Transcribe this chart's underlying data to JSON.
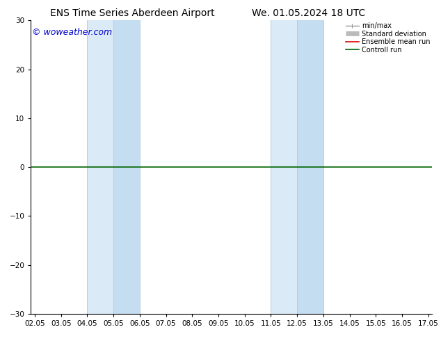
{
  "title_left": "ENS Time Series Aberdeen Airport",
  "title_right": "We. 01.05.2024 18 UTC",
  "xlabel_ticks": [
    "02.05",
    "03.05",
    "04.05",
    "05.05",
    "06.05",
    "07.05",
    "08.05",
    "09.05",
    "10.05",
    "11.05",
    "12.05",
    "13.05",
    "14.05",
    "15.05",
    "16.05",
    "17.05"
  ],
  "ylabel_ticks": [
    -30,
    -20,
    -10,
    0,
    10,
    20,
    30
  ],
  "ylim": [
    -30,
    30
  ],
  "shaded_bands": [
    {
      "xstart": 4.05,
      "xend": 6.05
    },
    {
      "xstart": 11.05,
      "xend": 13.05
    }
  ],
  "sub_bands": [
    {
      "xstart": 5.05,
      "xend": 6.05
    },
    {
      "xstart": 12.05,
      "xend": 13.05
    }
  ],
  "watermark": "© woweather.com",
  "watermark_color": "#0000cc",
  "legend_items": [
    {
      "label": "min/max",
      "color": "#999999",
      "lw": 1.0
    },
    {
      "label": "Standard deviation",
      "color": "#bbbbbb",
      "lw": 5
    },
    {
      "label": "Ensemble mean run",
      "color": "#dd0000",
      "lw": 1.2
    },
    {
      "label": "Controll run",
      "color": "#006600",
      "lw": 1.2
    }
  ],
  "background_color": "#ffffff",
  "shade_color": "#daeaf7",
  "shade_color2": "#c5ddf0",
  "zero_line_color": "#006600",
  "border_color": "#000000",
  "title_fontsize": 10,
  "tick_fontsize": 7.5,
  "watermark_fontsize": 9,
  "figsize": [
    6.34,
    4.9
  ],
  "dpi": 100
}
